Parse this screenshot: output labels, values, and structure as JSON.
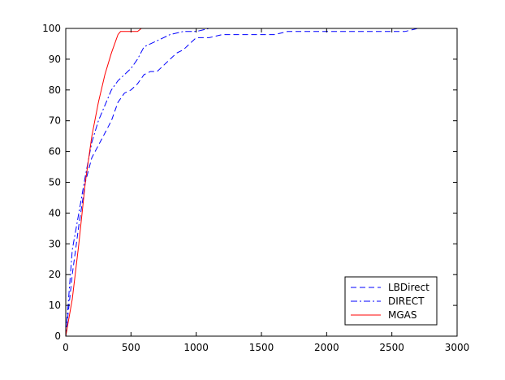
{
  "chart_data": {
    "type": "line",
    "title": "",
    "xlabel": "",
    "ylabel": "",
    "xlim": [
      0,
      3000
    ],
    "ylim": [
      0,
      100
    ],
    "xticks": [
      0,
      500,
      1000,
      1500,
      2000,
      2500,
      3000
    ],
    "yticks": [
      0,
      10,
      20,
      30,
      40,
      50,
      60,
      70,
      80,
      90,
      100
    ],
    "grid": false,
    "legend_position": "bottom-right",
    "series": [
      {
        "name": "LBDirect",
        "color": "#0000ff",
        "dash": "dashed",
        "x": [
          0,
          50,
          100,
          150,
          200,
          250,
          300,
          350,
          400,
          450,
          500,
          550,
          600,
          650,
          700,
          750,
          800,
          850,
          900,
          950,
          1000,
          1050,
          1100,
          1200,
          1300,
          1400,
          1500,
          1600,
          1700,
          1800,
          2000,
          2200,
          2400,
          2600,
          2700
        ],
        "y": [
          0,
          20,
          36,
          50,
          58,
          62,
          66,
          70,
          76,
          79,
          80,
          82,
          85,
          86,
          86,
          88,
          90,
          92,
          93,
          95,
          97,
          97,
          97,
          98,
          98,
          98,
          98,
          98,
          99,
          99,
          99,
          99,
          99,
          99,
          100
        ]
      },
      {
        "name": "DIRECT",
        "color": "#0000ff",
        "dash": "dashdot",
        "x": [
          0,
          50,
          100,
          150,
          200,
          250,
          300,
          350,
          400,
          450,
          500,
          550,
          600,
          700,
          800,
          900,
          1000,
          1100,
          1200
        ],
        "y": [
          0,
          28,
          40,
          52,
          63,
          70,
          75,
          80,
          83,
          85,
          87,
          90,
          94,
          96,
          98,
          99,
          99,
          100,
          100
        ]
      },
      {
        "name": "MGAS",
        "color": "#ff0000",
        "dash": "solid",
        "x": [
          0,
          50,
          100,
          150,
          200,
          250,
          300,
          350,
          400,
          420,
          450,
          500,
          550,
          580,
          600
        ],
        "y": [
          0,
          12,
          30,
          50,
          65,
          76,
          85,
          92,
          98,
          99,
          99,
          99,
          99,
          100,
          100
        ]
      }
    ]
  }
}
